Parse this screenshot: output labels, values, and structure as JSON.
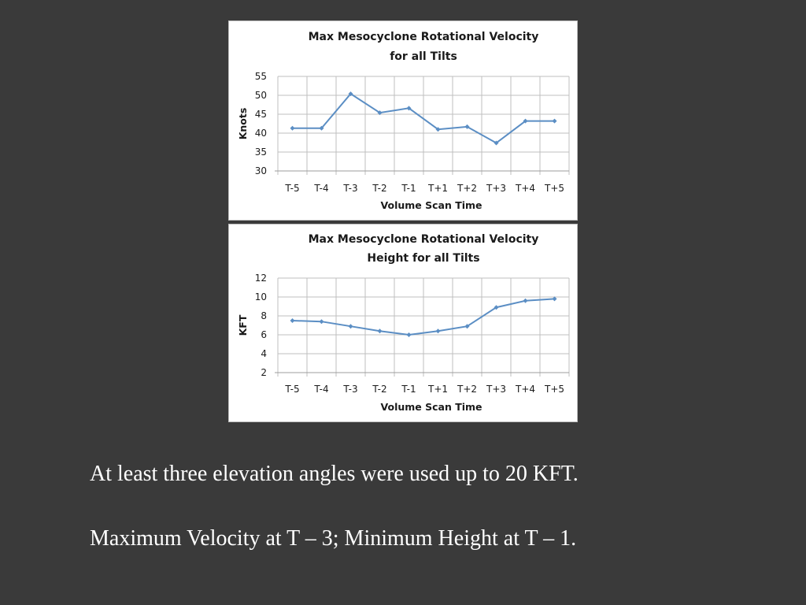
{
  "chart_data": [
    {
      "type": "line",
      "title": "Max Mesocyclone Rotational Velocity\nfor all Tilts",
      "title_lines": [
        "Max Mesocyclone Rotational Velocity",
        "for all Tilts"
      ],
      "xlabel": "Volume Scan Time",
      "ylabel": "Knots",
      "categories": [
        "T-5",
        "T-4",
        "T-3",
        "T-2",
        "T-1",
        "T+1",
        "T+2",
        "T+3",
        "T+4",
        "T+5"
      ],
      "series": [
        {
          "values": [
            41.3,
            41.3,
            50.4,
            45.4,
            46.6,
            41.0,
            41.7,
            37.4,
            43.2,
            43.2
          ]
        }
      ],
      "ylim": [
        30,
        55
      ],
      "yticks": [
        30,
        35,
        40,
        45,
        50,
        55
      ],
      "grid": true,
      "line_color": "#5b8ec4"
    },
    {
      "type": "line",
      "title": "Max Mesocyclone Rotational Velocity\nHeight for all Tilts",
      "title_lines": [
        "Max Mesocyclone Rotational Velocity",
        "Height for all Tilts"
      ],
      "xlabel": "Volume Scan Time",
      "ylabel": "KFT",
      "categories": [
        "T-5",
        "T-4",
        "T-3",
        "T-2",
        "T-1",
        "T+1",
        "T+2",
        "T+3",
        "T+4",
        "T+5"
      ],
      "series": [
        {
          "values": [
            7.5,
            7.4,
            6.9,
            6.4,
            6.0,
            6.4,
            6.9,
            8.9,
            9.6,
            9.8
          ]
        }
      ],
      "ylim": [
        2,
        12
      ],
      "yticks": [
        2,
        4,
        6,
        8,
        10,
        12
      ],
      "grid": true,
      "line_color": "#5b8ec4"
    }
  ],
  "captions": {
    "line1": "At least three elevation angles were used up to 20 KFT.",
    "line2": "Maximum Velocity at T – 3;  Minimum Height at T – 1."
  },
  "colors": {
    "background": "#3a3a3a",
    "panel": "#ffffff",
    "grid": "#bfbfbf",
    "series": "#5b8ec4",
    "caption_text": "#ffffff"
  }
}
